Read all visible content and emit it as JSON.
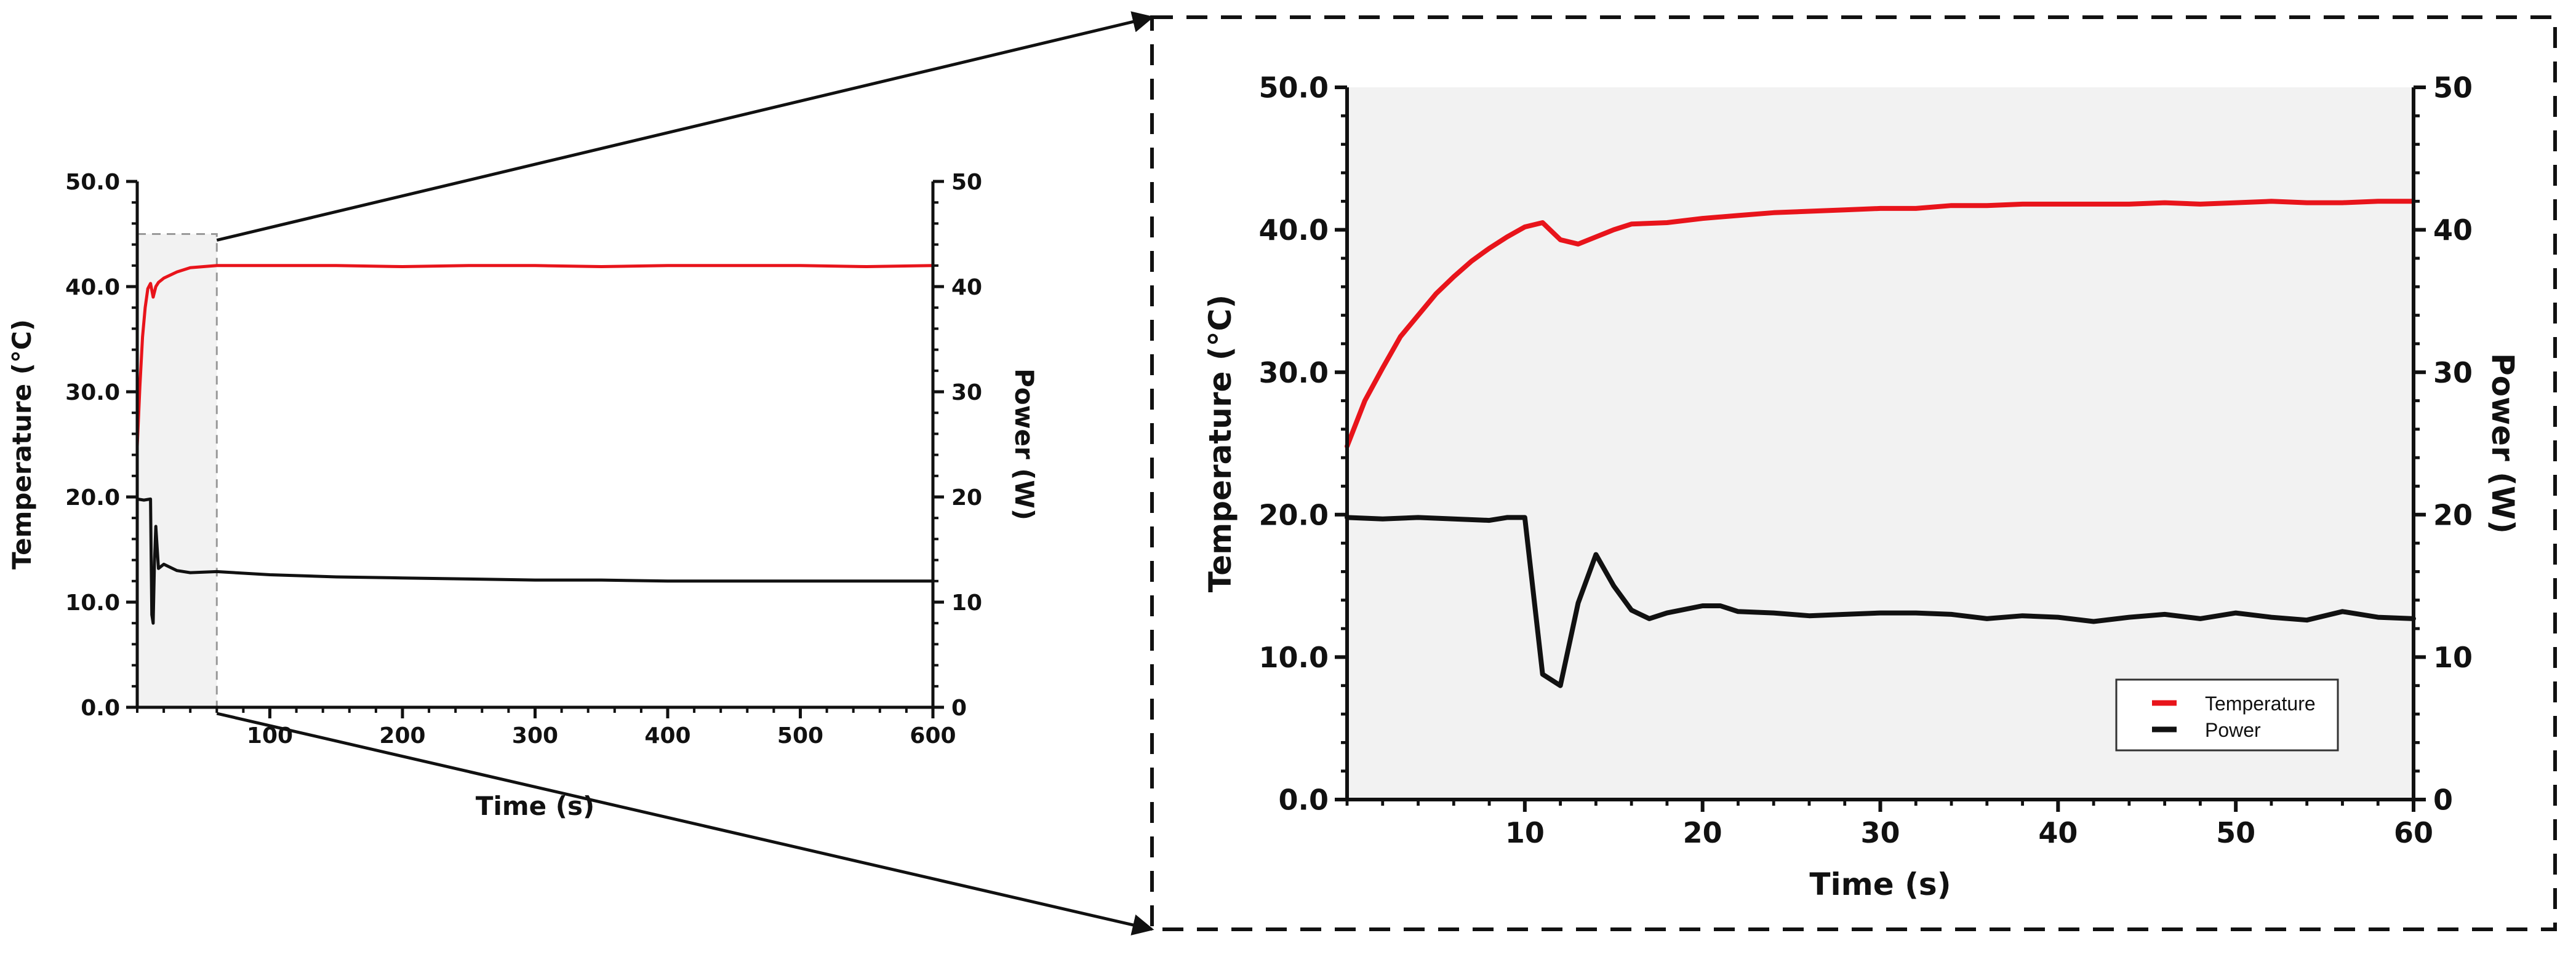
{
  "colors": {
    "temperature": "#e8141b",
    "power": "#111111",
    "panel_bg": "#f2f2f2",
    "axis": "#111111"
  },
  "legend": {
    "temperature_label": "Temperature",
    "power_label": "Power"
  },
  "chart_data": [
    {
      "type": "line",
      "panel": "full-run",
      "xlabel": "Time (s)",
      "ylabel_left": "Temperature (°C)",
      "ylabel_right": "Power (W)",
      "xlim": [
        0,
        600
      ],
      "ylim_left": [
        0,
        50
      ],
      "ylim_right": [
        0,
        50
      ],
      "x_ticks": [
        100,
        200,
        300,
        400,
        500,
        600
      ],
      "y_left_ticks": [
        "0.0",
        "10.0",
        "20.0",
        "30.0",
        "40.0",
        "50.0"
      ],
      "y_right_ticks": [
        "0",
        "10",
        "20",
        "30",
        "40",
        "50"
      ],
      "highlight": {
        "x_range": [
          0,
          60
        ],
        "y_top": 45,
        "style": "dashed"
      },
      "series": [
        {
          "name": "Temperature",
          "axis": "left",
          "x": [
            0,
            2,
            4,
            6,
            8,
            10,
            12,
            14,
            16,
            20,
            30,
            40,
            50,
            60,
            100,
            150,
            200,
            250,
            300,
            350,
            400,
            450,
            500,
            550,
            600
          ],
          "y": [
            24.8,
            30.5,
            35.2,
            38.0,
            39.8,
            40.3,
            39.0,
            40.0,
            40.4,
            40.8,
            41.4,
            41.8,
            41.9,
            42.0,
            42.0,
            42.0,
            41.9,
            42.0,
            42.0,
            41.9,
            42.0,
            42.0,
            42.0,
            41.9,
            42.0
          ]
        },
        {
          "name": "Power",
          "axis": "right",
          "x": [
            0,
            5,
            10,
            11,
            12,
            13,
            14,
            16,
            20,
            30,
            40,
            60,
            100,
            150,
            200,
            250,
            300,
            350,
            400,
            450,
            500,
            550,
            600
          ],
          "y": [
            19.8,
            19.7,
            19.8,
            8.8,
            8.0,
            13.8,
            17.2,
            13.2,
            13.6,
            13.0,
            12.8,
            12.9,
            12.6,
            12.4,
            12.3,
            12.2,
            12.1,
            12.1,
            12.0,
            12.0,
            12.0,
            12.0,
            12.0
          ]
        }
      ]
    },
    {
      "type": "line",
      "panel": "zoom",
      "xlabel": "Time (s)",
      "ylabel_left": "Temperature (°C)",
      "ylabel_right": "Power (W)",
      "xlim": [
        0,
        60
      ],
      "ylim_left": [
        0,
        50
      ],
      "ylim_right": [
        0,
        50
      ],
      "x_ticks": [
        10,
        20,
        30,
        40,
        50,
        60
      ],
      "y_left_ticks": [
        "0.0",
        "10.0",
        "20.0",
        "30.0",
        "40.0",
        "50.0"
      ],
      "y_right_ticks": [
        "0",
        "10",
        "20",
        "30",
        "40",
        "50"
      ],
      "legend_position": "lower-right",
      "series": [
        {
          "name": "Temperature",
          "axis": "left",
          "x": [
            0,
            1,
            2,
            3,
            4,
            5,
            6,
            7,
            8,
            9,
            10,
            11,
            12,
            13,
            14,
            15,
            16,
            18,
            20,
            22,
            24,
            26,
            28,
            30,
            32,
            34,
            36,
            38,
            40,
            42,
            44,
            46,
            48,
            50,
            52,
            54,
            56,
            58,
            60
          ],
          "y": [
            24.8,
            28.0,
            30.3,
            32.5,
            34.0,
            35.5,
            36.7,
            37.8,
            38.7,
            39.5,
            40.2,
            40.5,
            39.3,
            39.0,
            39.5,
            40.0,
            40.4,
            40.5,
            40.8,
            41.0,
            41.2,
            41.3,
            41.4,
            41.5,
            41.5,
            41.7,
            41.7,
            41.8,
            41.8,
            41.8,
            41.8,
            41.9,
            41.8,
            41.9,
            42.0,
            41.9,
            41.9,
            42.0,
            42.0
          ]
        },
        {
          "name": "Power",
          "axis": "right",
          "x": [
            0,
            2,
            4,
            6,
            8,
            9,
            10,
            11,
            12,
            13,
            14,
            15,
            16,
            17,
            18,
            20,
            21,
            22,
            24,
            26,
            28,
            30,
            32,
            34,
            36,
            38,
            40,
            42,
            44,
            46,
            48,
            50,
            52,
            54,
            56,
            58,
            60
          ],
          "y": [
            19.8,
            19.7,
            19.8,
            19.7,
            19.6,
            19.8,
            19.8,
            8.8,
            8.0,
            13.8,
            17.2,
            15.0,
            13.3,
            12.7,
            13.1,
            13.6,
            13.6,
            13.2,
            13.1,
            12.9,
            13.0,
            13.1,
            13.1,
            13.0,
            12.7,
            12.9,
            12.8,
            12.5,
            12.8,
            13.0,
            12.7,
            13.1,
            12.8,
            12.6,
            13.2,
            12.8,
            12.7
          ]
        }
      ]
    }
  ]
}
